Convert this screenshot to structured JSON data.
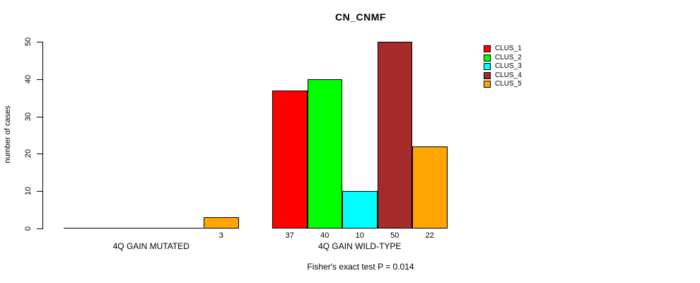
{
  "chart_data": {
    "type": "bar",
    "title": "CN_CNMF",
    "ylabel": "number of cases",
    "xlabel": "",
    "annotation": "Fisher's exact test P = 0.014",
    "categories": [
      "4Q GAIN MUTATED",
      "4Q GAIN WILD-TYPE"
    ],
    "series": [
      {
        "name": "CLUS_1",
        "color": "#FF0000",
        "values": [
          0,
          37
        ]
      },
      {
        "name": "CLUS_2",
        "color": "#00FF00",
        "values": [
          0,
          40
        ]
      },
      {
        "name": "CLUS_3",
        "color": "#00FFFF",
        "values": [
          0,
          10
        ]
      },
      {
        "name": "CLUS_4",
        "color": "#A52A2A",
        "values": [
          0,
          50
        ]
      },
      {
        "name": "CLUS_5",
        "color": "#FFA500",
        "values": [
          3,
          22
        ]
      }
    ],
    "bar_value_labels_shown_for_nonzero": true,
    "yticks": [
      0,
      10,
      20,
      30,
      40,
      50
    ],
    "ylim": [
      0,
      50
    ],
    "grid": false,
    "legend_position": "top-right",
    "bar_border_color": "#000000",
    "axis_color": "#000000",
    "background": "#FFFFFF"
  }
}
